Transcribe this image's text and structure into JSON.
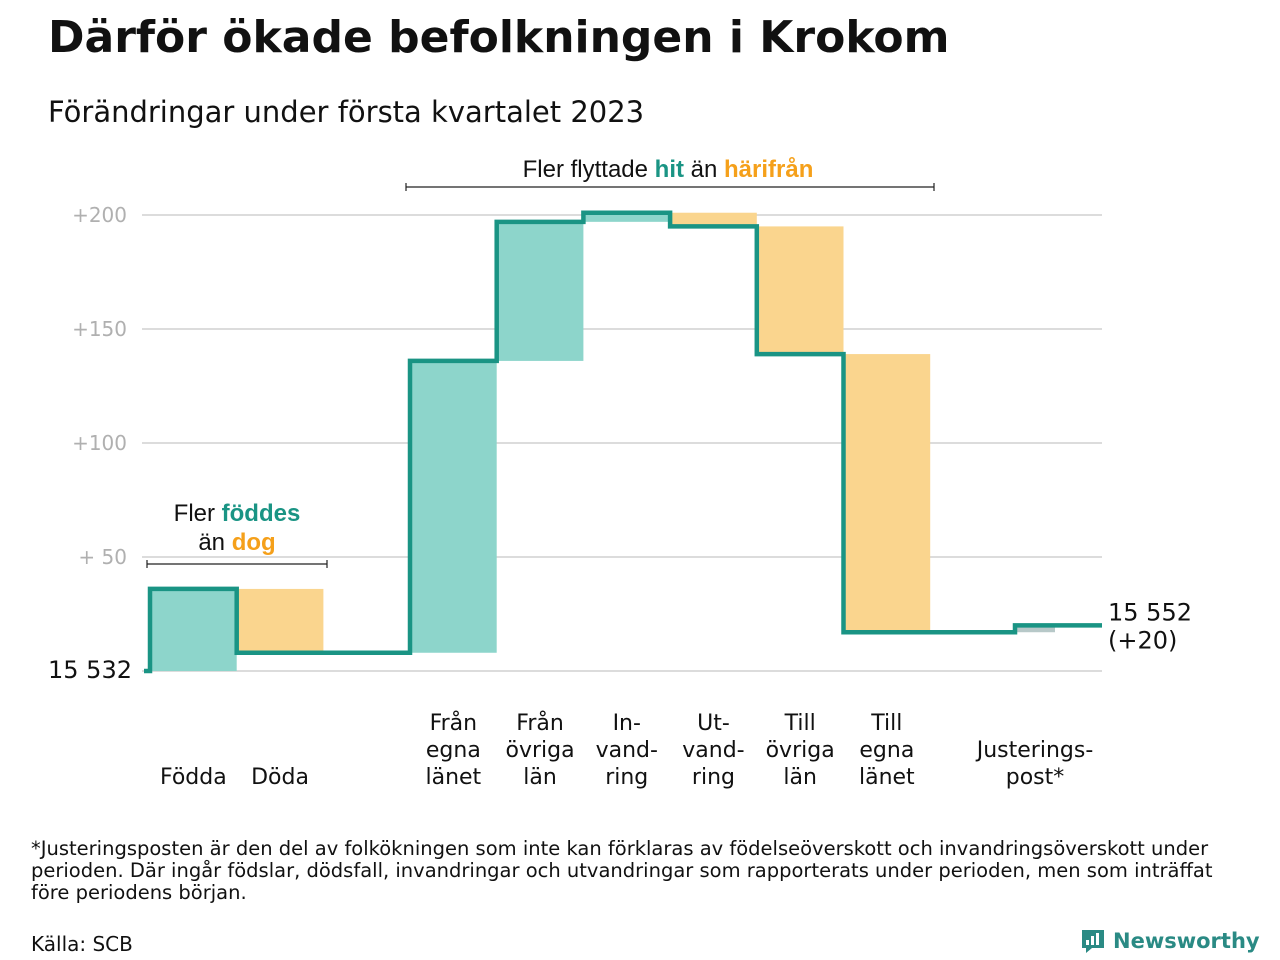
{
  "title": "Därför ökade befolkningen i Krokom",
  "subtitle": "Förändringar under första kvartalet 2023",
  "colors": {
    "increase": "#8dd5cb",
    "decrease": "#fad58e",
    "adjustment": "#b7c8c8",
    "line": "#1a9484",
    "accent_teal": "#1a9484",
    "accent_orange": "#f5a01a",
    "grid": "#dcdcdc",
    "tick_text": "#b0b0b0"
  },
  "annotations": {
    "births": {
      "line1_pre": "Fler ",
      "line1_hl": "föddes",
      "line2_pre": "än ",
      "line2_hl": "dog"
    },
    "migration": {
      "pre": "Fler flyttade ",
      "hl1": "hit",
      "mid": " än ",
      "hl2": "härifrån"
    }
  },
  "chart_data": {
    "type": "waterfall",
    "start_label": "15 532",
    "end_label_line1": "15 552",
    "end_label_line2": "(+20)",
    "baseline": 15532,
    "ylim": [
      0,
      200
    ],
    "y_ticks": [
      {
        "value": 200,
        "label": "+200"
      },
      {
        "value": 150,
        "label": "+150"
      },
      {
        "value": 100,
        "label": "+100"
      },
      {
        "value": 50,
        "label": "+ 50"
      },
      {
        "value": 0,
        "label": ""
      }
    ],
    "groups": [
      {
        "steps": [
          {
            "name": "Födda",
            "label_lines": [
              "Födda"
            ],
            "value": 36,
            "kind": "increase"
          },
          {
            "name": "Döda",
            "label_lines": [
              "Döda"
            ],
            "value": -28,
            "kind": "decrease"
          }
        ]
      },
      {
        "steps": [
          {
            "name": "Från egna länet",
            "label_lines": [
              "Från",
              "egna",
              "länet"
            ],
            "value": 128,
            "kind": "increase"
          },
          {
            "name": "Från övriga län",
            "label_lines": [
              "Från",
              "övriga",
              "län"
            ],
            "value": 61,
            "kind": "increase"
          },
          {
            "name": "Invandring",
            "label_lines": [
              "In-",
              "vand-",
              "ring"
            ],
            "value": 4,
            "kind": "increase"
          },
          {
            "name": "Utvandring",
            "label_lines": [
              "Ut-",
              "vand-",
              "ring"
            ],
            "value": -6,
            "kind": "decrease"
          },
          {
            "name": "Till övriga län",
            "label_lines": [
              "Till",
              "övriga",
              "län"
            ],
            "value": -56,
            "kind": "decrease"
          },
          {
            "name": "Till egna länet",
            "label_lines": [
              "Till",
              "egna",
              "länet"
            ],
            "value": -122,
            "kind": "decrease"
          }
        ]
      },
      {
        "steps": [
          {
            "name": "Justeringspost",
            "label_lines": [
              "Justerings-",
              "post*"
            ],
            "value": 3,
            "kind": "adjustment"
          }
        ]
      }
    ],
    "total_change": 20
  },
  "footnote": "*Justeringsposten är den del av folkökningen som inte kan förklaras av födelseöverskott och invandringsöverskott under perioden. Där ingår födslar, dödsfall, invandringar och utvandringar som rapporterats under perioden, men som inträffat före periodens början.",
  "source": "Källa: SCB",
  "brand": {
    "name": "Newsworthy",
    "icon": "newsworthy-logo-icon"
  }
}
